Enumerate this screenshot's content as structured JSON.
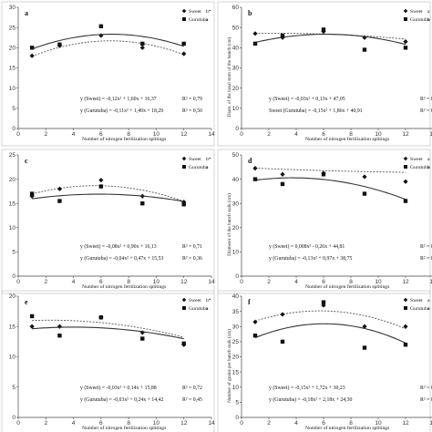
{
  "figure": {
    "xlabel": "Number of nitrogen fertilization splitings"
  },
  "chart_data": [
    {
      "type": "scatter",
      "panel_label": "a",
      "ylabel": "",
      "xlim": [
        0,
        14
      ],
      "ylim": [
        0,
        30
      ],
      "xticks": [
        0,
        2,
        4,
        6,
        8,
        10,
        12,
        14
      ],
      "yticks": [
        0,
        5,
        10,
        15,
        20,
        25,
        30
      ],
      "legend": [
        {
          "label": "Sweet",
          "marker": "diamond",
          "suffix": "b*"
        },
        {
          "label": "Gurutuba",
          "marker": "square",
          "suffix": "a"
        }
      ],
      "series": [
        {
          "name": "Sweet",
          "marker": "diamond",
          "x": [
            1,
            3,
            6,
            9,
            12
          ],
          "y": [
            18,
            20.5,
            23,
            20,
            18.5
          ],
          "coef": [
            -0.12,
            1.6,
            16.37
          ],
          "line": "dashed",
          "equation": "y (Sweet) = -0,12x² + 1,60x + 16,37",
          "r2": "R² = 0,79"
        },
        {
          "name": "Gurutuba",
          "marker": "square",
          "x": [
            1,
            3,
            6,
            9,
            12
          ],
          "y": [
            20,
            20.8,
            25.3,
            21,
            21
          ],
          "coef": [
            -0.11,
            1.49,
            18.29
          ],
          "line": "solid",
          "equation": "y (Gurutuba) = -0,11x² + 1,49x + 18,29",
          "r2": "R² = 0,50"
        }
      ]
    },
    {
      "type": "scatter",
      "panel_label": "b",
      "ylabel": "Diam. of the basal stem of the bunch (cm)",
      "xlim": [
        0,
        14
      ],
      "ylim": [
        0,
        60
      ],
      "xticks": [
        0,
        2,
        4,
        6,
        8,
        10,
        12,
        14
      ],
      "yticks": [
        0,
        10,
        20,
        30,
        40,
        50,
        60
      ],
      "legend": [
        {
          "label": "Sweet",
          "marker": "diamond",
          "suffix": "a"
        },
        {
          "label": "Gurutuba",
          "marker": "square",
          "suffix": "b"
        }
      ],
      "series": [
        {
          "name": "Sweet",
          "marker": "diamond",
          "x": [
            1,
            3,
            6,
            9,
            12
          ],
          "y": [
            47,
            45,
            48,
            45,
            43
          ],
          "coef": [
            -0.03,
            0.13,
            47.05
          ],
          "line": "dashed",
          "equation": "y (Sweet) = -0,03x² + 0,13x + 47,05",
          "r2": "R² = 0,"
        },
        {
          "name": "Gurutuba",
          "marker": "square",
          "x": [
            1,
            3,
            6,
            9,
            12
          ],
          "y": [
            42,
            46,
            49,
            39,
            40
          ],
          "coef": [
            -0.15,
            1.86,
            40.91
          ],
          "line": "solid",
          "equation": "Sweet (Gurutuba) = -0,15x² + 1,86x + 40,91",
          "r2": "R² = 0,"
        }
      ]
    },
    {
      "type": "scatter",
      "panel_label": "c",
      "ylabel": "",
      "xlim": [
        0,
        14
      ],
      "ylim": [
        0,
        25
      ],
      "xticks": [
        0,
        2,
        4,
        6,
        8,
        10,
        12,
        14
      ],
      "yticks": [
        0,
        5,
        10,
        15,
        20,
        25
      ],
      "legend": [
        {
          "label": "Sweet",
          "marker": "diamond",
          "suffix": "b*"
        },
        {
          "label": "Gurutuba",
          "marker": "square",
          "suffix": "a"
        }
      ],
      "series": [
        {
          "name": "Sweet",
          "marker": "diamond",
          "x": [
            1,
            3,
            6,
            9,
            12
          ],
          "y": [
            16.5,
            18,
            19.8,
            16.5,
            15.3
          ],
          "coef": [
            -0.08,
            0.9,
            16.13
          ],
          "line": "dashed",
          "equation": "y (Sweet) = -0,08x² + 0,90x + 16,13",
          "r2": "R² = 0,71"
        },
        {
          "name": "Gurutuba",
          "marker": "square",
          "x": [
            1,
            3,
            6,
            9,
            12
          ],
          "y": [
            17,
            15.5,
            18.5,
            15,
            14.8
          ],
          "coef": [
            -0.04,
            0.47,
            15.53
          ],
          "line": "solid",
          "equation": "y (Gurutuba) = -0,04x² + 0,47x + 15,53",
          "r2": "R² = 0,36"
        }
      ]
    },
    {
      "type": "scatter",
      "panel_label": "d",
      "ylabel": "Diameter of the bunch stalk (cm)",
      "xlim": [
        0,
        14
      ],
      "ylim": [
        0,
        50
      ],
      "xticks": [
        0,
        2,
        4,
        6,
        8,
        10,
        12,
        14
      ],
      "yticks": [
        0,
        10,
        20,
        30,
        40,
        50
      ],
      "legend": [
        {
          "label": "Sweet",
          "marker": "diamond",
          "suffix": "a"
        },
        {
          "label": "Gurutuba",
          "marker": "square",
          "suffix": "b"
        }
      ],
      "series": [
        {
          "name": "Sweet",
          "marker": "diamond",
          "x": [
            1,
            3,
            6,
            9,
            12
          ],
          "y": [
            44.5,
            42,
            42.5,
            41,
            39
          ],
          "coef": [
            0.008,
            -0.26,
            44.81
          ],
          "line": "dashed",
          "equation": "y (Sweet) = 0,008x² - 0,26x + 44,81",
          "r2": "R² = 0,"
        },
        {
          "name": "Gurutuba",
          "marker": "square",
          "x": [
            1,
            3,
            6,
            9,
            12
          ],
          "y": [
            40,
            38,
            42,
            34,
            31
          ],
          "coef": [
            -0.13,
            0.97,
            38.75
          ],
          "line": "solid",
          "equation": "y (Gurutuba) = -0,13x² + 0,97x + 38,75",
          "r2": "R² = 0,"
        }
      ]
    },
    {
      "type": "scatter",
      "panel_label": "e",
      "ylabel": "",
      "xlim": [
        0,
        14
      ],
      "ylim": [
        0,
        20
      ],
      "xticks": [
        0,
        2,
        4,
        6,
        8,
        10,
        12,
        14
      ],
      "yticks": [
        0,
        5,
        10,
        15,
        20
      ],
      "legend": [
        {
          "label": "Sweet",
          "marker": "diamond",
          "suffix": "b*"
        },
        {
          "label": "Gurutuba",
          "marker": "square",
          "suffix": "a"
        }
      ],
      "series": [
        {
          "name": "Sweet",
          "marker": "diamond",
          "x": [
            1,
            3,
            6,
            9,
            12
          ],
          "y": [
            15,
            15,
            16.5,
            14,
            12
          ],
          "coef": [
            -0.03,
            0.14,
            15.88
          ],
          "line": "dashed",
          "equation": "y (Sweet) = -0,03x² + 0,14x + 15,88",
          "r2": "R² = 0,72"
        },
        {
          "name": "Gurutuba",
          "marker": "square",
          "x": [
            1,
            3,
            6,
            9,
            12
          ],
          "y": [
            16.7,
            13.5,
            16.5,
            13,
            12.2
          ],
          "coef": [
            -0.03,
            0.24,
            14.42
          ],
          "line": "solid",
          "equation": "y (Gurutuba) = -0,03x² + 0,24x + 14,42",
          "r2": "R² = 0,45"
        }
      ]
    },
    {
      "type": "scatter",
      "panel_label": "f",
      "ylabel": "Number of grains per bunch stalk (cm)",
      "xlim": [
        0,
        14
      ],
      "ylim": [
        0,
        40
      ],
      "xticks": [
        0,
        2,
        4,
        6,
        8,
        10,
        12,
        14
      ],
      "yticks": [
        0,
        5,
        10,
        15,
        20,
        25,
        30,
        35,
        40
      ],
      "legend": [
        {
          "label": "Sweet",
          "marker": "diamond",
          "suffix": "a"
        },
        {
          "label": "Gurutuba",
          "marker": "square",
          "suffix": "a"
        }
      ],
      "series": [
        {
          "name": "Sweet",
          "marker": "diamond",
          "x": [
            1,
            3,
            6,
            9,
            12
          ],
          "y": [
            31.5,
            34,
            37,
            30,
            30
          ],
          "coef": [
            -0.15,
            1.72,
            30.23
          ],
          "line": "dashed",
          "equation": "y (Sweet) = -0,15x² + 1,72x + 30,23",
          "r2": "R² = 0,"
        },
        {
          "name": "Gurutuba",
          "marker": "square",
          "x": [
            1,
            3,
            6,
            9,
            12
          ],
          "y": [
            27,
            25,
            38,
            23,
            24
          ],
          "coef": [
            -0.18,
            2.18,
            24.3
          ],
          "line": "solid",
          "equation": "y (Gurutuba) = -0,18x² + 2,18x + 24,30",
          "r2": "R² = 0,"
        }
      ]
    }
  ]
}
